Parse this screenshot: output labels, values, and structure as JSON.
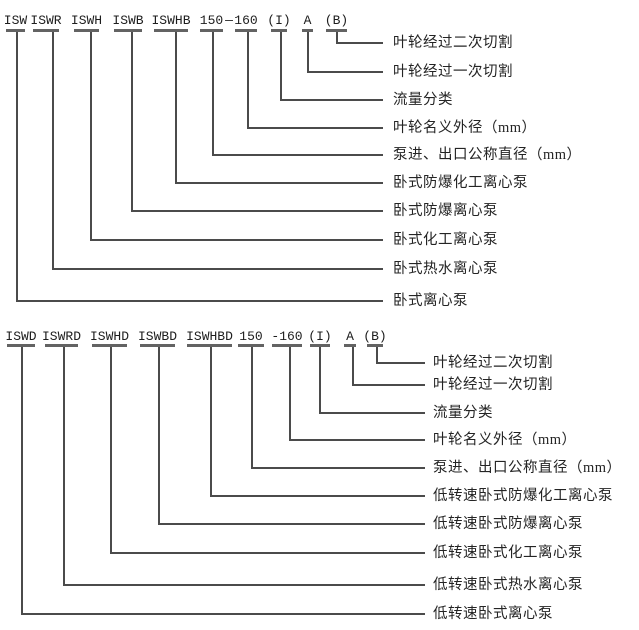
{
  "colors": {
    "background": "#ffffff",
    "line": "#4b4b4b",
    "underline": "#636363",
    "code_text": "#1d1d1d",
    "label_text": "#242424"
  },
  "diagrams": [
    {
      "items": [
        {
          "code": "ISW",
          "label": "卧式离心泵"
        },
        {
          "code": "ISWR",
          "label": "卧式热水离心泵"
        },
        {
          "code": "ISWH",
          "label": "卧式化工离心泵"
        },
        {
          "code": "ISWB",
          "label": "卧式防爆离心泵"
        },
        {
          "code": "ISWHB",
          "label": "卧式防爆化工离心泵"
        },
        {
          "code": "150",
          "label": "泵进、出口公称直径（mm）"
        },
        {
          "code": "160",
          "label": "叶轮名义外径（mm）"
        },
        {
          "code": "(I)",
          "label": "流量分类"
        },
        {
          "code": "A",
          "label": "叶轮经过一次切割"
        },
        {
          "code": "(B)",
          "label": "叶轮经过二次切割"
        }
      ],
      "separator": "—"
    },
    {
      "items": [
        {
          "code": "ISWD",
          "label": "低转速卧式离心泵"
        },
        {
          "code": "ISWRD",
          "label": "低转速卧式热水离心泵"
        },
        {
          "code": "ISWHD",
          "label": "低转速卧式化工离心泵"
        },
        {
          "code": "ISWBD",
          "label": "低转速卧式防爆离心泵"
        },
        {
          "code": "ISWHBD",
          "label": "低转速卧式防爆化工离心泵"
        },
        {
          "code": "150",
          "label": "泵进、出口公称直径（mm）"
        },
        {
          "code": "-160",
          "label": "叶轮名义外径（mm）"
        },
        {
          "code": "(I)",
          "label": "流量分类"
        },
        {
          "code": "A",
          "label": "叶轮经过一次切割"
        },
        {
          "code": "(B)",
          "label": "叶轮经过二次切割"
        }
      ]
    }
  ]
}
